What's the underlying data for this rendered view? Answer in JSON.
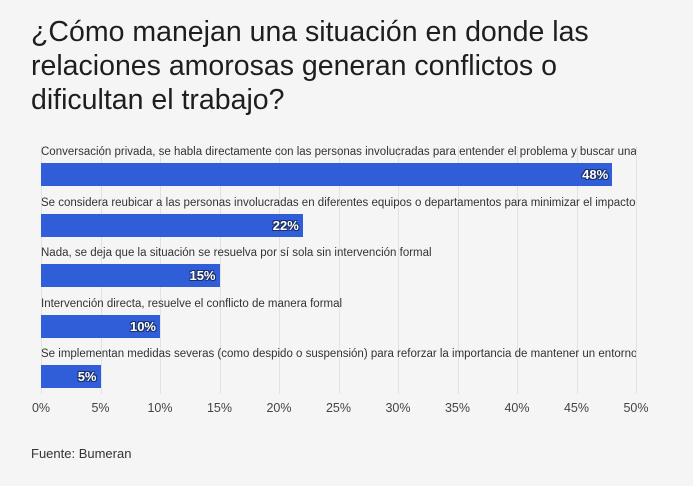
{
  "title": "¿Cómo manejan una situación en donde las relaciones amorosas generan conflictos o dificultan el trabajo?",
  "source": "Fuente: Bumeran",
  "chart_data": {
    "type": "bar",
    "orientation": "horizontal",
    "title": "¿Cómo manejan una situación en donde las relaciones amorosas generan conflictos o dificultan el trabajo?",
    "categories": [
      "Conversación privada, se habla directamente con las personas involucradas para entender el problema y buscar una solución",
      "Se considera reubicar a las personas involucradas en diferentes equipos o departamentos para minimizar el impacto",
      "Nada, se deja que la situación se resuelva por sí sola sin intervención formal",
      "Intervención directa, resuelve el conflicto de manera formal",
      "Se implementan medidas severas (como despido o suspensión) para reforzar la importancia de mantener un entorno profesional"
    ],
    "values": [
      48,
      22,
      15,
      10,
      5
    ],
    "value_labels": [
      "48%",
      "22%",
      "15%",
      "10%",
      "5%"
    ],
    "xlim": [
      0,
      50
    ],
    "ticks": [
      "0%",
      "5%",
      "10%",
      "15%",
      "20%",
      "25%",
      "30%",
      "35%",
      "40%",
      "45%",
      "50%"
    ],
    "bar_color": "#2f5ed8",
    "xlabel": "",
    "ylabel": ""
  }
}
